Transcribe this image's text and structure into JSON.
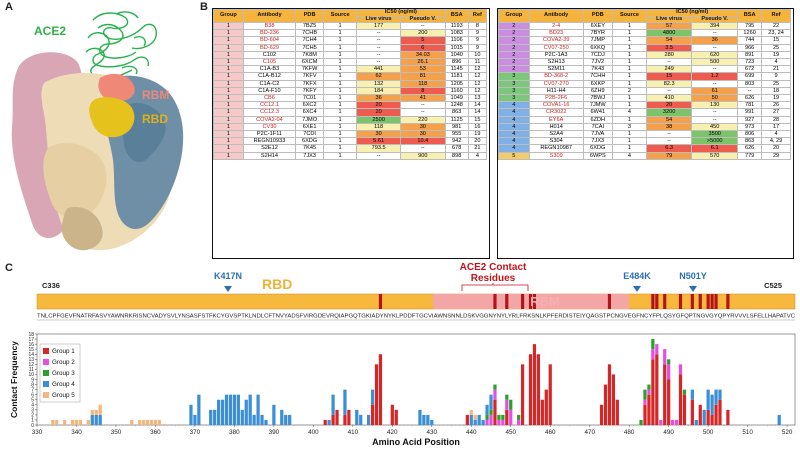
{
  "panel_labels": {
    "a": "A",
    "b": "B",
    "c": "C"
  },
  "panel_a": {
    "ace2": "ACE2",
    "rbm": "RBM",
    "rbd": "RBD"
  },
  "table_headers": {
    "group": "Group",
    "antibody": "Antibody",
    "pdb": "PDB",
    "source": "Source",
    "ic50": "IC50 (ng/ml)",
    "live": "Live virus",
    "pseudo": "Pseudo V.",
    "bsa": "BSA",
    "ref": "Ref"
  },
  "colors": {
    "group1": "#f6c8c8",
    "group2": "#c98ee0",
    "group3": "#7cc87a",
    "group4": "#7fb0e6",
    "group5": "#f2cc6a",
    "ic50_red": "#ee5c4f",
    "ic50_orange": "#f5a04b",
    "ic50_yellow": "#f6e47a",
    "ic50_green": "#7cc46a",
    "ic50_pale": "#f8f0b0",
    "bar_group1": "#d62728",
    "bar_group2": "#e64de6",
    "bar_group3": "#2ca02c",
    "bar_group4": "#3b8fd4",
    "bar_group5": "#f3b77e",
    "rbd_band": "#f7b83e",
    "rbm_band": "#f4a6a6"
  },
  "table_left": [
    {
      "group": "1",
      "antibody": "B38",
      "red": true,
      "pdb": "7BZ5",
      "source": "1",
      "live": "177",
      "live_c": "pale",
      "pseudo": "--",
      "pseudo_c": "",
      "bsa": "1193",
      "ref": "8"
    },
    {
      "group": "1",
      "antibody": "BD-236",
      "red": true,
      "pdb": "7CHB",
      "source": "1",
      "live": "--",
      "live_c": "",
      "pseudo": "200",
      "pseudo_c": "pale",
      "bsa": "1083",
      "ref": "9"
    },
    {
      "group": "1",
      "antibody": "BD-604",
      "red": true,
      "pdb": "7CH4",
      "source": "1",
      "live": "--",
      "live_c": "",
      "pseudo": "5",
      "pseudo_c": "red",
      "bsa": "1106",
      "ref": "9"
    },
    {
      "group": "1",
      "antibody": "BD-629",
      "red": true,
      "pdb": "7CH5",
      "source": "1",
      "live": "--",
      "live_c": "",
      "pseudo": "6",
      "pseudo_c": "red",
      "bsa": "1015",
      "ref": "9"
    },
    {
      "group": "1",
      "antibody": "C102",
      "red": false,
      "pdb": "7K8M",
      "source": "1",
      "live": "--",
      "live_c": "",
      "pseudo": "34.03",
      "pseudo_c": "orange",
      "bsa": "1040",
      "ref": "10"
    },
    {
      "group": "1",
      "antibody": "C105",
      "red": true,
      "pdb": "6XCM",
      "source": "1",
      "live": "--",
      "live_c": "",
      "pseudo": "26.1",
      "pseudo_c": "orange",
      "bsa": "896",
      "ref": "11"
    },
    {
      "group": "1",
      "antibody": "C1A-B3",
      "red": false,
      "pdb": "7KFW",
      "source": "1",
      "live": "441",
      "live_c": "pale",
      "pseudo": "53",
      "pseudo_c": "orange",
      "bsa": "1145",
      "ref": "12"
    },
    {
      "group": "1",
      "antibody": "C1A-B12",
      "red": false,
      "pdb": "7KFV",
      "source": "1",
      "live": "62",
      "live_c": "orange",
      "pseudo": "81",
      "pseudo_c": "orange",
      "bsa": "1181",
      "ref": "12"
    },
    {
      "group": "1",
      "antibody": "C1A-C2",
      "red": false,
      "pdb": "7KFX",
      "source": "1",
      "live": "132",
      "live_c": "pale",
      "pseudo": "118",
      "pseudo_c": "orange",
      "bsa": "1205",
      "ref": "12"
    },
    {
      "group": "1",
      "antibody": "C1A-F10",
      "red": false,
      "pdb": "7KFY",
      "source": "1",
      "live": "184",
      "live_c": "pale",
      "pseudo": "8",
      "pseudo_c": "red",
      "bsa": "1160",
      "ref": "12"
    },
    {
      "group": "1",
      "antibody": "CB6",
      "red": true,
      "pdb": "7C01",
      "source": "1",
      "live": "36",
      "live_c": "orange",
      "pseudo": "41",
      "pseudo_c": "orange",
      "bsa": "1049",
      "ref": "13"
    },
    {
      "group": "1",
      "antibody": "CC12.1",
      "red": true,
      "pdb": "6XC2",
      "source": "1",
      "live": "20",
      "live_c": "red",
      "pseudo": "--",
      "pseudo_c": "",
      "bsa": "1248",
      "ref": "14"
    },
    {
      "group": "1",
      "antibody": "CC12.3",
      "red": true,
      "pdb": "6XC4",
      "source": "1",
      "live": "20",
      "live_c": "red",
      "pseudo": "--",
      "pseudo_c": "",
      "bsa": "863",
      "ref": "14"
    },
    {
      "group": "1",
      "antibody": "COVA2-04",
      "red": true,
      "pdb": "7JMO",
      "source": "1",
      "live": "2500",
      "live_c": "green",
      "pseudo": "220",
      "pseudo_c": "pale",
      "bsa": "1125",
      "ref": "15"
    },
    {
      "group": "1",
      "antibody": "CV30",
      "red": true,
      "pdb": "6XE1",
      "source": "1",
      "live": "118",
      "live_c": "pale",
      "pseudo": "30",
      "pseudo_c": "orange",
      "bsa": "981",
      "ref": "16"
    },
    {
      "group": "1",
      "antibody": "P2C-1F11",
      "red": false,
      "pdb": "7CDI",
      "source": "1",
      "live": "30",
      "live_c": "orange",
      "pseudo": "30",
      "pseudo_c": "orange",
      "bsa": "955",
      "ref": "19"
    },
    {
      "group": "1",
      "antibody": "REGN10933",
      "red": false,
      "pdb": "6XDG",
      "source": "1",
      "live": "5.61",
      "live_c": "red",
      "pseudo": "10.4",
      "pseudo_c": "red",
      "bsa": "942",
      "ref": "20"
    },
    {
      "group": "1",
      "antibody": "S2E12",
      "red": false,
      "pdb": "7K45",
      "source": "1",
      "live": "793.5",
      "live_c": "pale",
      "pseudo": "--",
      "pseudo_c": "",
      "bsa": "678",
      "ref": "21"
    },
    {
      "group": "1",
      "antibody": "S2H14",
      "red": false,
      "pdb": "7JX3",
      "source": "1",
      "live": "--",
      "live_c": "",
      "pseudo": "900",
      "pseudo_c": "pale",
      "bsa": "898",
      "ref": "4"
    }
  ],
  "table_right": [
    {
      "group": "2",
      "antibody": "2-4",
      "red": true,
      "pdb": "6XEY",
      "source": "1",
      "live": "57",
      "live_c": "orange",
      "pseudo": "394",
      "pseudo_c": "pale",
      "bsa": "795",
      "ref": "22"
    },
    {
      "group": "2",
      "antibody": "BD23",
      "red": true,
      "pdb": "7BYR",
      "source": "1",
      "live": "4800",
      "live_c": "green",
      "pseudo": "--",
      "pseudo_c": "",
      "bsa": "1260",
      "ref": "23, 24"
    },
    {
      "group": "2",
      "antibody": "COVA2-39",
      "red": true,
      "pdb": "7JMP",
      "source": "1",
      "live": "54",
      "live_c": "orange",
      "pseudo": "36",
      "pseudo_c": "orange",
      "bsa": "744",
      "ref": "15"
    },
    {
      "group": "2",
      "antibody": "CV07-250",
      "red": true,
      "pdb": "6XKQ",
      "source": "1",
      "live": "3.5",
      "live_c": "red",
      "pseudo": "--",
      "pseudo_c": "",
      "bsa": "966",
      "ref": "25"
    },
    {
      "group": "2",
      "antibody": "P2C-1A3",
      "red": false,
      "pdb": "7CDJ",
      "source": "1",
      "live": "280",
      "live_c": "pale",
      "pseudo": "620",
      "pseudo_c": "pale",
      "bsa": "891",
      "ref": "19"
    },
    {
      "group": "2",
      "antibody": "S2H13",
      "red": false,
      "pdb": "7JV2",
      "source": "1",
      "live": "--",
      "live_c": "",
      "pseudo": "500",
      "pseudo_c": "pale",
      "bsa": "723",
      "ref": "4"
    },
    {
      "group": "2",
      "antibody": "S2M11",
      "red": false,
      "pdb": "7K43",
      "source": "1",
      "live": "249",
      "live_c": "pale",
      "pseudo": "--",
      "pseudo_c": "",
      "bsa": "672",
      "ref": "21"
    },
    {
      "group": "3",
      "antibody": "BD-368-2",
      "red": true,
      "pdb": "7CHH",
      "source": "1",
      "live": "15",
      "live_c": "red",
      "pseudo": "1.2",
      "pseudo_c": "red",
      "bsa": "699",
      "ref": "9"
    },
    {
      "group": "3",
      "antibody": "CV07-270",
      "red": true,
      "pdb": "6XKP",
      "source": "1",
      "live": "82.3",
      "live_c": "pale",
      "pseudo": "--",
      "pseudo_c": "",
      "bsa": "803",
      "ref": "25"
    },
    {
      "group": "3",
      "antibody": "H11-H4",
      "red": false,
      "pdb": "6ZH9",
      "source": "2",
      "live": "--",
      "live_c": "",
      "pseudo": "61",
      "pseudo_c": "orange",
      "bsa": "--",
      "ref": "18"
    },
    {
      "group": "3",
      "antibody": "P2B-2F6",
      "red": true,
      "pdb": "7BWJ",
      "source": "1",
      "live": "410",
      "live_c": "pale",
      "pseudo": "50",
      "pseudo_c": "orange",
      "bsa": "626",
      "ref": "19"
    },
    {
      "group": "4",
      "antibody": "COVA1-16",
      "red": true,
      "pdb": "7JMW",
      "source": "1",
      "live": "20",
      "live_c": "red",
      "pseudo": "130",
      "pseudo_c": "pale",
      "bsa": "781",
      "ref": "26"
    },
    {
      "group": "4",
      "antibody": "CR3022",
      "red": true,
      "pdb": "6W41",
      "source": "4",
      "live": "3200",
      "live_c": "green",
      "pseudo": "--",
      "pseudo_c": "",
      "bsa": "991",
      "ref": "27"
    },
    {
      "group": "4",
      "antibody": "EY6A",
      "red": true,
      "pdb": "6ZDH",
      "source": "1",
      "live": "54",
      "live_c": "orange",
      "pseudo": "--",
      "pseudo_c": "",
      "bsa": "927",
      "ref": "28"
    },
    {
      "group": "4",
      "antibody": "H014",
      "red": false,
      "pdb": "7CAI",
      "source": "3",
      "live": "38",
      "live_c": "orange",
      "pseudo": "450",
      "pseudo_c": "pale",
      "bsa": "973",
      "ref": "17"
    },
    {
      "group": "4",
      "antibody": "S2A4",
      "red": false,
      "pdb": "7JVA",
      "source": "1",
      "live": "--",
      "live_c": "",
      "pseudo": "3500",
      "pseudo_c": "green",
      "bsa": "806",
      "ref": "4"
    },
    {
      "group": "4",
      "antibody": "S304",
      "red": false,
      "pdb": "7JX3",
      "source": "1",
      "live": "--",
      "live_c": "",
      "pseudo": ">5000",
      "pseudo_c": "green",
      "bsa": "863",
      "ref": "4, 29"
    },
    {
      "group": "4",
      "antibody": "REGN10987",
      "red": false,
      "pdb": "6XDG",
      "source": "1",
      "live": "6.3",
      "live_c": "red",
      "pseudo": "6.1",
      "pseudo_c": "red",
      "bsa": "626",
      "ref": "20"
    },
    {
      "group": "5",
      "antibody": "S309",
      "red": true,
      "pdb": "6WPS",
      "source": "4",
      "live": "79",
      "live_c": "orange",
      "pseudo": "570",
      "pseudo_c": "pale",
      "bsa": "779",
      "ref": "29"
    }
  ],
  "panel_c": {
    "band_rbd": "RBD",
    "band_rbm": "RBM",
    "start_residue": "C336",
    "end_residue": "C525",
    "ace2_contact": "ACE2 Contact",
    "ace2_contact_2": "Residues",
    "mutations": [
      "K417N",
      "E484K",
      "N501Y"
    ],
    "sequence": "TNLCPFGEVFNATRFASVYAWNRKRISNCVADYSVLYNSASFSTFKCYGVSPTKLNDLCFTNVYADSFVIRGDEVRQIAPGQTGKIADYNYKLPDDFTGCVIAWNSNNLDSKVGGNYNYLYRLFRKSNLKPFERDISTEIYQAGSTPCNGVEGFNCYFPLQSYGFQPTNGVGYQPYRVVVLSFELLHAPATVC"
  },
  "chart_data": {
    "type": "bar",
    "title": "",
    "xlabel": "Amino Acid Position",
    "ylabel": "Contact Frequency",
    "xlim": [
      330,
      522
    ],
    "ylim": [
      0,
      18
    ],
    "xticks": [
      330,
      340,
      350,
      360,
      370,
      380,
      390,
      400,
      410,
      420,
      430,
      440,
      450,
      460,
      470,
      480,
      490,
      500,
      510,
      520
    ],
    "yticks": [
      0,
      1,
      2,
      3,
      4,
      5,
      6,
      7,
      8,
      9,
      10,
      11,
      12,
      13,
      14,
      15,
      16,
      17,
      18
    ],
    "legend_position": "top-left",
    "series": [
      {
        "name": "Group 1",
        "positions": [
          403,
          405,
          406,
          408,
          409,
          415,
          416,
          417,
          420,
          421,
          439,
          446,
          449,
          453,
          455,
          456,
          457,
          458,
          459,
          460,
          473,
          474,
          475,
          476,
          477,
          484,
          485,
          486,
          487,
          489,
          490,
          493,
          494,
          496,
          498,
          500,
          501,
          502,
          503,
          505
        ],
        "values": [
          1,
          2,
          3,
          2,
          3,
          4,
          12,
          14,
          4,
          3,
          2,
          5,
          3,
          12,
          14,
          16,
          14,
          5,
          7,
          12,
          4,
          8,
          12,
          10,
          5,
          4,
          6,
          13,
          14,
          12,
          9,
          10,
          6,
          5,
          4,
          3,
          2,
          4,
          5,
          3
        ]
      },
      {
        "name": "Group 2",
        "positions": [
          444,
          445,
          446,
          447,
          448,
          449,
          450,
          452,
          484,
          485,
          486,
          487,
          488,
          489,
          490,
          491,
          492,
          493
        ],
        "values": [
          1,
          2,
          2,
          1,
          1,
          2,
          3,
          1,
          1,
          1,
          2,
          2,
          1,
          3,
          3,
          1,
          1,
          2
        ]
      },
      {
        "name": "Group 3",
        "positions": [
          444,
          445,
          446,
          447,
          448,
          449,
          450,
          452,
          483,
          484,
          485,
          486,
          490,
          494
        ],
        "values": [
          1,
          1,
          1,
          1,
          1,
          1,
          2,
          1,
          1,
          2,
          1,
          2,
          1,
          1
        ]
      },
      {
        "name": "Group 4",
        "positions": [
          344,
          345,
          346,
          369,
          370,
          371,
          374,
          375,
          376,
          377,
          378,
          379,
          380,
          381,
          382,
          383,
          384,
          385,
          386,
          387,
          388,
          390,
          392,
          393,
          394,
          404,
          405,
          408,
          411,
          412,
          414,
          415,
          427,
          428,
          429,
          430,
          440,
          441,
          442,
          443,
          444,
          445,
          496,
          497,
          499,
          500,
          501,
          502,
          503,
          518
        ],
        "values": [
          2,
          2,
          2,
          4,
          2,
          6,
          3,
          3,
          5,
          5,
          6,
          6,
          6,
          6,
          3,
          5,
          6,
          2,
          6,
          2,
          1,
          4,
          3,
          2,
          2,
          1,
          4,
          5,
          3,
          2,
          2,
          3,
          3,
          2,
          2,
          1,
          2,
          1,
          2,
          1,
          2,
          3,
          2,
          1,
          3,
          4,
          4,
          3,
          2,
          2
        ]
      },
      {
        "name": "Group 5",
        "positions": [
          334,
          335,
          337,
          339,
          340,
          341,
          343,
          344,
          345,
          346,
          354,
          356,
          357,
          358,
          359,
          360,
          361,
          440,
          441
        ],
        "values": [
          1,
          1,
          1,
          1,
          1,
          1,
          1,
          1,
          1,
          2,
          1,
          1,
          1,
          1,
          1,
          1,
          1,
          1,
          1
        ]
      }
    ]
  }
}
